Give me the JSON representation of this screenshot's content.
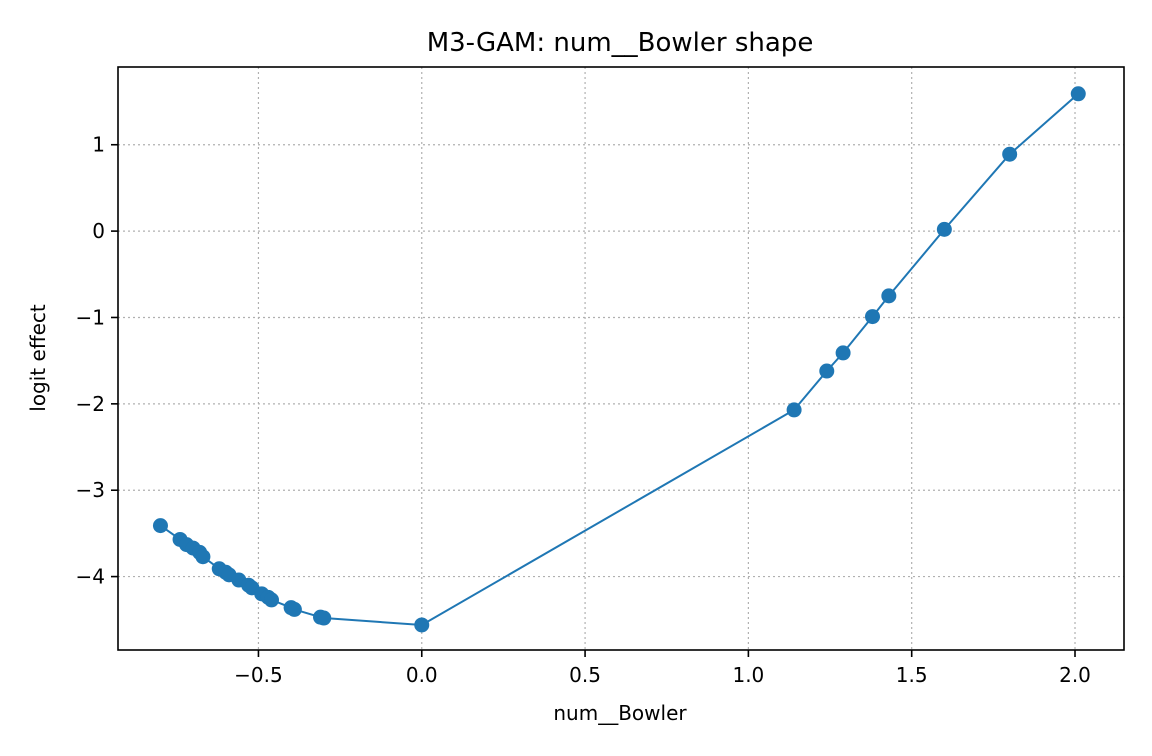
{
  "chart_data": {
    "type": "line",
    "title": "M3-GAM: num__Bowler shape",
    "xlabel": "num__Bowler",
    "ylabel": "logit effect",
    "xlim": [
      -0.93,
      2.15
    ],
    "ylim": [
      -4.85,
      1.9
    ],
    "xticks": [
      -0.5,
      0.0,
      0.5,
      1.0,
      1.5,
      2.0
    ],
    "xtick_labels": [
      "−0.5",
      "0.0",
      "0.5",
      "1.0",
      "1.5",
      "2.0"
    ],
    "yticks": [
      1,
      0,
      -1,
      -2,
      -3,
      -4
    ],
    "ytick_labels": [
      "1",
      "0",
      "−1",
      "−2",
      "−3",
      "−4"
    ],
    "grid": true,
    "marker": "circle",
    "color": "#1f77b4",
    "series": [
      {
        "x": [
          -0.8,
          -0.74,
          -0.72,
          -0.7,
          -0.68,
          -0.67,
          -0.62,
          -0.6,
          -0.59,
          -0.56,
          -0.53,
          -0.52,
          -0.49,
          -0.47,
          -0.46,
          -0.4,
          -0.39,
          -0.31,
          -0.3,
          0.0,
          1.14,
          1.24,
          1.29,
          1.38,
          1.43,
          1.6,
          1.8,
          2.01
        ],
        "y": [
          -3.41,
          -3.57,
          -3.63,
          -3.67,
          -3.72,
          -3.77,
          -3.91,
          -3.95,
          -3.98,
          -4.04,
          -4.1,
          -4.13,
          -4.2,
          -4.24,
          -4.27,
          -4.36,
          -4.38,
          -4.47,
          -4.48,
          -4.56,
          -2.07,
          -1.62,
          -1.41,
          -0.99,
          -0.75,
          0.02,
          0.89,
          1.59
        ]
      }
    ]
  }
}
